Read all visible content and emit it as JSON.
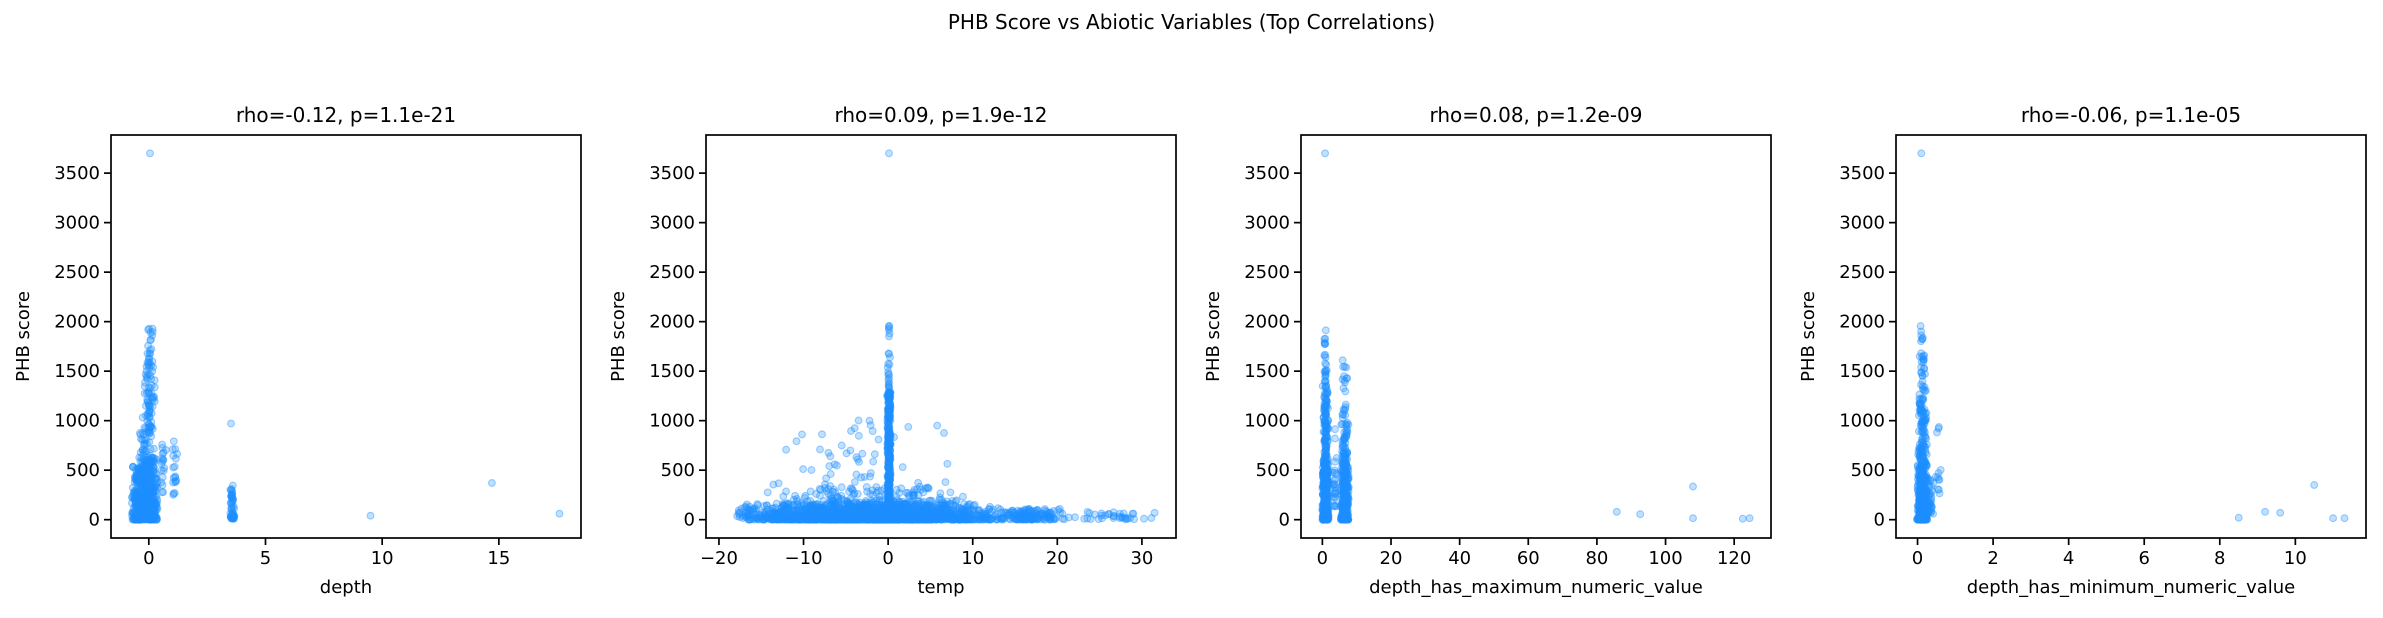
{
  "figure": {
    "suptitle": "PHB Score vs Abiotic Variables (Top Correlations)",
    "background_color": "#ffffff",
    "axis_color": "#000000",
    "dot_color": "#1E90FF",
    "dot_fill_alpha": 0.28,
    "dot_edge_alpha": 0.42,
    "ylabel": "PHB score"
  },
  "chart_data": [
    {
      "type": "scatter",
      "title": "rho=-0.12, p=1.1e-21",
      "xlabel": "depth",
      "ylabel": "PHB score",
      "xlim": [
        -1.62,
        18.52
      ],
      "ylim": [
        -185,
        3885
      ],
      "xticks": [
        0,
        5,
        10,
        15
      ],
      "xtick_labels": [
        "0",
        "5",
        "10",
        "15"
      ],
      "yticks": [
        0,
        500,
        1000,
        1500,
        2000,
        2500,
        3000,
        3500
      ],
      "ytick_labels": [
        "0",
        "500",
        "1000",
        "1500",
        "2000",
        "2500",
        "3000",
        "3500"
      ],
      "grid": false,
      "clusters": [
        {
          "cx": -0.45,
          "xs": 0.3,
          "ymin": 0,
          "ymax": 540,
          "n": 260,
          "bias": 2.0
        },
        {
          "cx": 0.08,
          "xs": 0.32,
          "ymin": 0,
          "ymax": 640,
          "n": 300,
          "bias": 2.0
        },
        {
          "cx": -0.12,
          "xs": 0.38,
          "ymin": 120,
          "ymax": 900,
          "n": 130,
          "bias": 1.6
        },
        {
          "cx": 0.0,
          "xs": 0.3,
          "ymin": 900,
          "ymax": 1480,
          "n": 60,
          "bias": 1.2
        },
        {
          "cx": 0.05,
          "xs": 0.2,
          "ymin": 1480,
          "ymax": 1760,
          "n": 20,
          "bias": 1.0
        },
        {
          "cx": 0.08,
          "xs": 0.12,
          "ymin": 1800,
          "ymax": 1960,
          "n": 8,
          "bias": 1.0
        },
        {
          "cx": 0.62,
          "xs": 0.13,
          "ymin": 250,
          "ymax": 780,
          "n": 18,
          "bias": 1.2
        },
        {
          "cx": 1.1,
          "xs": 0.14,
          "ymin": 250,
          "ymax": 800,
          "n": 18,
          "bias": 1.2
        },
        {
          "cx": 3.58,
          "xs": 0.1,
          "ymin": 10,
          "ymax": 320,
          "n": 50,
          "bias": 1.8
        }
      ],
      "outliers": [
        [
          0.05,
          3700
        ],
        [
          3.52,
          970
        ],
        [
          3.6,
          345
        ],
        [
          9.5,
          40
        ],
        [
          14.7,
          370
        ],
        [
          17.6,
          60
        ]
      ]
    },
    {
      "type": "scatter",
      "title": "rho=0.09, p=1.9e-12",
      "xlabel": "temp",
      "ylabel": "PHB score",
      "xlim": [
        -21.53,
        34.03
      ],
      "ylim": [
        -185,
        3885
      ],
      "xticks": [
        -20,
        -10,
        0,
        10,
        20,
        30
      ],
      "xtick_labels": [
        "−20",
        "−10",
        "0",
        "10",
        "20",
        "30"
      ],
      "yticks": [
        0,
        500,
        1000,
        1500,
        2000,
        2500,
        3000,
        3500
      ],
      "ytick_labels": [
        "0",
        "500",
        "1000",
        "1500",
        "2000",
        "2500",
        "3000",
        "3500"
      ],
      "grid": false,
      "clusters": [
        {
          "cx": -2.75,
          "xs": 15.75,
          "ymin": 0,
          "ymax": 160,
          "n": 1500,
          "bias": 2.2
        },
        {
          "cx": 0.0,
          "xs": 19.0,
          "ymin": 0,
          "ymax": 120,
          "n": 500,
          "bias": 2.0
        },
        {
          "cx": 17.0,
          "xs": 4.0,
          "ymin": 0,
          "ymax": 110,
          "n": 130,
          "bias": 2.0
        },
        {
          "cx": 26.0,
          "xs": 5.5,
          "ymin": 5,
          "ymax": 80,
          "n": 35,
          "bias": 1.5
        },
        {
          "cx": -2.0,
          "xs": 13.0,
          "ymin": 150,
          "ymax": 330,
          "n": 170,
          "bias": 1.8
        },
        {
          "cx": -2.5,
          "xs": 12.5,
          "ymin": 330,
          "ymax": 1020,
          "n": 48,
          "bias": 1.7
        },
        {
          "cx": 0.1,
          "xs": 0.22,
          "ymin": 0,
          "ymax": 1300,
          "n": 320,
          "bias": 1.0
        },
        {
          "cx": 0.1,
          "xs": 0.18,
          "ymin": 1300,
          "ymax": 1680,
          "n": 16,
          "bias": 1.0
        },
        {
          "cx": 0.1,
          "xs": 0.1,
          "ymin": 1800,
          "ymax": 1960,
          "n": 6,
          "bias": 1.0
        }
      ],
      "outliers": [
        [
          0.1,
          3700
        ],
        [
          5.8,
          950
        ],
        [
          6.6,
          875
        ],
        [
          -2.2,
          1000
        ],
        [
          31.5,
          70
        ],
        [
          29.0,
          60
        ]
      ]
    },
    {
      "type": "scatter",
      "title": "rho=0.08, p=1.2e-09",
      "xlabel": "depth_has_maximum_numeric_value",
      "ylabel": "PHB score",
      "xlim": [
        -6.23,
        130.73
      ],
      "ylim": [
        -185,
        3885
      ],
      "xticks": [
        0,
        20,
        40,
        60,
        80,
        100,
        120
      ],
      "xtick_labels": [
        "0",
        "20",
        "40",
        "60",
        "80",
        "100",
        "120"
      ],
      "yticks": [
        0,
        500,
        1000,
        1500,
        2000,
        2500,
        3000,
        3500
      ],
      "ytick_labels": [
        "0",
        "500",
        "1000",
        "1500",
        "2000",
        "2500",
        "3000",
        "3500"
      ],
      "grid": false,
      "clusters": [
        {
          "cx": 0.9,
          "xs": 1.0,
          "ymin": 0,
          "ymax": 560,
          "n": 420,
          "bias": 2.0
        },
        {
          "cx": 0.95,
          "xs": 0.9,
          "ymin": 560,
          "ymax": 1350,
          "n": 120,
          "bias": 1.4
        },
        {
          "cx": 0.9,
          "xs": 0.6,
          "ymin": 1350,
          "ymax": 1690,
          "n": 18,
          "bias": 1.0
        },
        {
          "cx": 0.9,
          "xs": 0.35,
          "ymin": 1750,
          "ymax": 1960,
          "n": 7,
          "bias": 1.0
        },
        {
          "cx": 6.5,
          "xs": 1.3,
          "ymin": 0,
          "ymax": 520,
          "n": 300,
          "bias": 2.0
        },
        {
          "cx": 6.5,
          "xs": 1.1,
          "ymin": 520,
          "ymax": 1120,
          "n": 80,
          "bias": 1.4
        },
        {
          "cx": 6.6,
          "xs": 0.8,
          "ymin": 1120,
          "ymax": 1660,
          "n": 14,
          "bias": 1.0
        },
        {
          "cx": 3.6,
          "xs": 0.9,
          "ymin": 120,
          "ymax": 1000,
          "n": 26,
          "bias": 1.5
        }
      ],
      "outliers": [
        [
          0.8,
          3700
        ],
        [
          85.8,
          80
        ],
        [
          92.6,
          55
        ],
        [
          108,
          335
        ],
        [
          108,
          15
        ],
        [
          122.5,
          10
        ],
        [
          124.5,
          15
        ]
      ]
    },
    {
      "type": "scatter",
      "title": "rho=-0.06, p=1.1e-05",
      "xlabel": "depth_has_minimum_numeric_value",
      "ylabel": "PHB score",
      "xlim": [
        -0.57,
        11.87
      ],
      "ylim": [
        -185,
        3885
      ],
      "xticks": [
        0,
        2,
        4,
        6,
        8,
        10
      ],
      "xtick_labels": [
        "0",
        "2",
        "4",
        "6",
        "8",
        "10"
      ],
      "yticks": [
        0,
        500,
        1000,
        1500,
        2000,
        2500,
        3000,
        3500
      ],
      "ytick_labels": [
        "0",
        "500",
        "1000",
        "1500",
        "2000",
        "2500",
        "3000",
        "3500"
      ],
      "grid": false,
      "clusters": [
        {
          "cx": 0.12,
          "xs": 0.14,
          "ymin": 0,
          "ymax": 560,
          "n": 470,
          "bias": 2.0
        },
        {
          "cx": 0.13,
          "xs": 0.13,
          "ymin": 560,
          "ymax": 1350,
          "n": 120,
          "bias": 1.4
        },
        {
          "cx": 0.12,
          "xs": 0.1,
          "ymin": 1350,
          "ymax": 1690,
          "n": 20,
          "bias": 1.0
        },
        {
          "cx": 0.12,
          "xs": 0.07,
          "ymin": 1750,
          "ymax": 1960,
          "n": 7,
          "bias": 1.0
        },
        {
          "cx": 0.32,
          "xs": 0.12,
          "ymin": 60,
          "ymax": 420,
          "n": 40,
          "bias": 1.6
        },
        {
          "cx": 0.55,
          "xs": 0.08,
          "ymin": 250,
          "ymax": 520,
          "n": 9,
          "bias": 1.0
        },
        {
          "cx": 0.55,
          "xs": 0.05,
          "ymin": 880,
          "ymax": 960,
          "n": 3,
          "bias": 1.0
        }
      ],
      "outliers": [
        [
          0.1,
          3700
        ],
        [
          8.5,
          20
        ],
        [
          9.2,
          80
        ],
        [
          9.6,
          70
        ],
        [
          10.5,
          350
        ],
        [
          11.0,
          15
        ],
        [
          11.3,
          15
        ]
      ]
    }
  ]
}
